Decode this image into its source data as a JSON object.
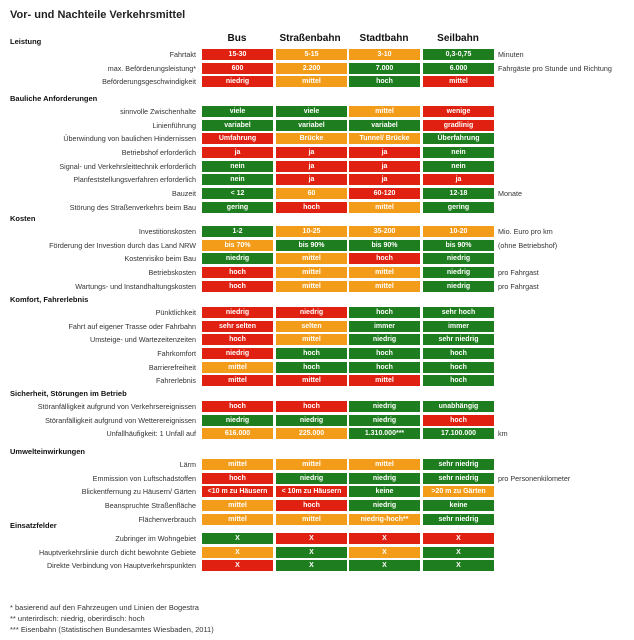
{
  "title": "Vor- und Nachteile Verkehrsmittel",
  "colors": {
    "green": "#1e7d1e",
    "orange": "#f39c1a",
    "red": "#e02010"
  },
  "columns": [
    "Bus",
    "Straßenbahn",
    "Stadtbahn",
    "Seilbahn"
  ],
  "sections": [
    {
      "title": "Leistung",
      "rows": [
        {
          "label": "Fahrtakt",
          "cells": [
            [
              "15-30",
              "r"
            ],
            [
              "5-15",
              "o"
            ],
            [
              "3-10",
              "o"
            ],
            [
              "0,3-0,75",
              "g"
            ]
          ],
          "unit": "Minuten"
        },
        {
          "label": "max. Beförderungsleistung*",
          "cells": [
            [
              "600",
              "r"
            ],
            [
              "2.200",
              "o"
            ],
            [
              "7.000",
              "g"
            ],
            [
              "6.000",
              "g"
            ]
          ],
          "unit": "Fahrgäste pro Stunde und Richtung"
        },
        {
          "label": "Beförderungsgeschwindigkeit",
          "cells": [
            [
              "niedrig",
              "r"
            ],
            [
              "mittel",
              "o"
            ],
            [
              "hoch",
              "g"
            ],
            [
              "mittel",
              "r"
            ]
          ],
          "unit": ""
        }
      ]
    },
    {
      "title": "Bauliche Anforderungen",
      "rows": [
        {
          "label": "sinnvolle Zwischenhalte",
          "cells": [
            [
              "viele",
              "g"
            ],
            [
              "viele",
              "g"
            ],
            [
              "mittel",
              "o"
            ],
            [
              "wenige",
              "r"
            ]
          ],
          "unit": ""
        },
        {
          "label": "Linienführung",
          "cells": [
            [
              "variabel",
              "g"
            ],
            [
              "variabel",
              "g"
            ],
            [
              "variabel",
              "g"
            ],
            [
              "gradlinig",
              "r"
            ]
          ],
          "unit": ""
        },
        {
          "label": "Überwindung von baulichen Hindernissen",
          "cells": [
            [
              "Umfahrung",
              "r"
            ],
            [
              "Brücke",
              "o"
            ],
            [
              "Tunnel/ Brücke",
              "o"
            ],
            [
              "Überfahrung",
              "g"
            ]
          ],
          "unit": ""
        },
        {
          "label": "Betriebshof erforderlich",
          "cells": [
            [
              "ja",
              "r"
            ],
            [
              "ja",
              "r"
            ],
            [
              "ja",
              "r"
            ],
            [
              "nein",
              "g"
            ]
          ],
          "unit": ""
        },
        {
          "label": "Signal- und Verkehrsleittechnik erforderlich",
          "cells": [
            [
              "nein",
              "g"
            ],
            [
              "ja",
              "r"
            ],
            [
              "ja",
              "r"
            ],
            [
              "nein",
              "g"
            ]
          ],
          "unit": ""
        },
        {
          "label": "Planfeststellungsverfahren erforderlich",
          "cells": [
            [
              "nein",
              "g"
            ],
            [
              "ja",
              "r"
            ],
            [
              "ja",
              "r"
            ],
            [
              "ja",
              "r"
            ]
          ],
          "unit": ""
        },
        {
          "label": "Bauzeit",
          "cells": [
            [
              "< 12",
              "g"
            ],
            [
              "60",
              "o"
            ],
            [
              "60-120",
              "r"
            ],
            [
              "12-18",
              "g"
            ]
          ],
          "unit": "Monate"
        },
        {
          "label": "Störung des Straßenverkehrs beim Bau",
          "cells": [
            [
              "gering",
              "g"
            ],
            [
              "hoch",
              "r"
            ],
            [
              "mittel",
              "o"
            ],
            [
              "gering",
              "g"
            ]
          ],
          "unit": ""
        }
      ]
    },
    {
      "title": "Kosten",
      "rows": [
        {
          "label": "Investitionskosten",
          "cells": [
            [
              "1-2",
              "g"
            ],
            [
              "10-25",
              "o"
            ],
            [
              "35-200",
              "o"
            ],
            [
              "10-20",
              "o"
            ]
          ],
          "unit": "Mio. Euro pro km"
        },
        {
          "label": "Förderung der Investion durch das Land NRW",
          "cells": [
            [
              "bis 70%",
              "o"
            ],
            [
              "bis 90%",
              "g"
            ],
            [
              "bis 90%",
              "g"
            ],
            [
              "bis 90%",
              "g"
            ]
          ],
          "unit": "(ohne Betriebshof)"
        },
        {
          "label": "Kostenrisiko beim Bau",
          "cells": [
            [
              "niedrig",
              "g"
            ],
            [
              "mittel",
              "o"
            ],
            [
              "hoch",
              "r"
            ],
            [
              "niedrig",
              "g"
            ]
          ],
          "unit": ""
        },
        {
          "label": "Betriebskosten",
          "cells": [
            [
              "hoch",
              "r"
            ],
            [
              "mittel",
              "o"
            ],
            [
              "mittel",
              "o"
            ],
            [
              "niedrig",
              "g"
            ]
          ],
          "unit": "pro Fahrgast"
        },
        {
          "label": "Wartungs- und Instandhaltungskosten",
          "cells": [
            [
              "hoch",
              "r"
            ],
            [
              "mittel",
              "o"
            ],
            [
              "mittel",
              "o"
            ],
            [
              "niedrig",
              "g"
            ]
          ],
          "unit": "pro Fahrgast"
        }
      ]
    },
    {
      "title": "Komfort, Fahrerlebnis",
      "rows": [
        {
          "label": "Pünktlichkeit",
          "cells": [
            [
              "niedrig",
              "r"
            ],
            [
              "niedrig",
              "r"
            ],
            [
              "hoch",
              "g"
            ],
            [
              "sehr hoch",
              "g"
            ]
          ],
          "unit": ""
        },
        {
          "label": "Fahrt auf eigener Trasse oder Fahrbahn",
          "cells": [
            [
              "sehr selten",
              "r"
            ],
            [
              "selten",
              "o"
            ],
            [
              "immer",
              "g"
            ],
            [
              "immer",
              "g"
            ]
          ],
          "unit": ""
        },
        {
          "label": "Umsteige- und Wartezeitenzeiten",
          "cells": [
            [
              "hoch",
              "r"
            ],
            [
              "mittel",
              "o"
            ],
            [
              "niedrig",
              "g"
            ],
            [
              "sehr niedrig",
              "g"
            ]
          ],
          "unit": ""
        },
        {
          "label": "Fahrkomfort",
          "cells": [
            [
              "niedrig",
              "r"
            ],
            [
              "hoch",
              "g"
            ],
            [
              "hoch",
              "g"
            ],
            [
              "hoch",
              "g"
            ]
          ],
          "unit": ""
        },
        {
          "label": "Barrierefreiheit",
          "cells": [
            [
              "mittel",
              "o"
            ],
            [
              "hoch",
              "g"
            ],
            [
              "hoch",
              "g"
            ],
            [
              "hoch",
              "g"
            ]
          ],
          "unit": ""
        },
        {
          "label": "Fahrerlebnis",
          "cells": [
            [
              "mittel",
              "r"
            ],
            [
              "mittel",
              "r"
            ],
            [
              "mittel",
              "r"
            ],
            [
              "hoch",
              "g"
            ]
          ],
          "unit": ""
        }
      ]
    },
    {
      "title": "Sicherheit, Störungen im Betrieb",
      "rows": [
        {
          "label": "Störanfälligkeit aufgrund von Verkehrsereignissen",
          "cells": [
            [
              "hoch",
              "r"
            ],
            [
              "hoch",
              "r"
            ],
            [
              "niedrig",
              "g"
            ],
            [
              "unabhängig",
              "g"
            ]
          ],
          "unit": ""
        },
        {
          "label": "Störanfälligkeit aufgrund von Wetterereignissen",
          "cells": [
            [
              "niedrig",
              "g"
            ],
            [
              "niedrig",
              "g"
            ],
            [
              "niedrig",
              "g"
            ],
            [
              "hoch",
              "r"
            ]
          ],
          "unit": ""
        },
        {
          "label": "Unfallhäufigkeit: 1 Unfall auf",
          "cells": [
            [
              "616.000",
              "o"
            ],
            [
              "225.000",
              "o"
            ],
            [
              "1.310.000***",
              "g"
            ],
            [
              "17.100.000",
              "g"
            ]
          ],
          "unit": "km"
        }
      ]
    },
    {
      "title": "Umwelteinwirkungen",
      "rows": [
        {
          "label": "Lärm",
          "cells": [
            [
              "mittel",
              "o"
            ],
            [
              "mittel",
              "o"
            ],
            [
              "mittel",
              "o"
            ],
            [
              "sehr niedrig",
              "g"
            ]
          ],
          "unit": ""
        },
        {
          "label": "Emmission von Luftschadstoffen",
          "cells": [
            [
              "hoch",
              "r"
            ],
            [
              "niedrig",
              "g"
            ],
            [
              "niedrig",
              "g"
            ],
            [
              "sehr niedrig",
              "g"
            ]
          ],
          "unit": "pro Personenkilometer"
        },
        {
          "label": "Blickentfernung zu Häusern/ Gärten",
          "cells": [
            [
              "<10 m zu Häusern",
              "r"
            ],
            [
              "< 10m zu Häusern",
              "r"
            ],
            [
              "keine",
              "g"
            ],
            [
              ">20 m zu Gärten",
              "o"
            ]
          ],
          "unit": ""
        },
        {
          "label": "Beanspruchte Straßenfläche",
          "cells": [
            [
              "mittel",
              "o"
            ],
            [
              "hoch",
              "r"
            ],
            [
              "niedrig",
              "g"
            ],
            [
              "keine",
              "g"
            ]
          ],
          "unit": ""
        },
        {
          "label": "Flächenverbrauch",
          "cells": [
            [
              "mittel",
              "o"
            ],
            [
              "mittel",
              "o"
            ],
            [
              "niedrig-hoch**",
              "o"
            ],
            [
              "sehr niedrig",
              "g"
            ]
          ],
          "unit": ""
        }
      ]
    },
    {
      "title": "Einsatzfelder",
      "rows": [
        {
          "label": "Zubringer im Wohngebiet",
          "cells": [
            [
              "X",
              "g"
            ],
            [
              "X",
              "r"
            ],
            [
              "X",
              "r"
            ],
            [
              "X",
              "r"
            ]
          ],
          "unit": ""
        },
        {
          "label": "Hauptverkehrslinie durch dicht bewohnte Gebiete",
          "cells": [
            [
              "X",
              "o"
            ],
            [
              "X",
              "g"
            ],
            [
              "X",
              "o"
            ],
            [
              "X",
              "g"
            ]
          ],
          "unit": ""
        },
        {
          "label": "Direkte Verbindung von Hauptverkehrspunkten",
          "cells": [
            [
              "X",
              "r"
            ],
            [
              "X",
              "g"
            ],
            [
              "X",
              "g"
            ],
            [
              "X",
              "g"
            ]
          ],
          "unit": ""
        }
      ]
    }
  ],
  "footnotes": [
    "* basierend auf den Fahrzeugen und Linien der Bogestra",
    "** unterirdisch: niedrig, oberirdisch: hoch",
    "*** Eisenbahn (Statistischen Bundesamtes Wiesbaden, 2011)"
  ]
}
